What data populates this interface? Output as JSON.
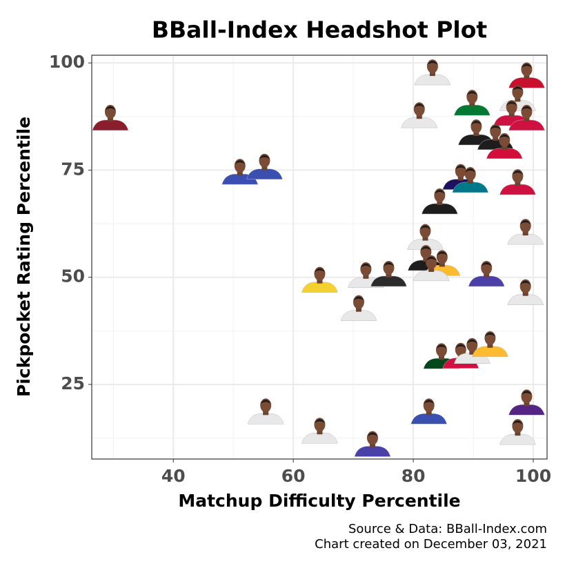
{
  "chart_data": {
    "type": "scatter",
    "title": "BBall-Index Headshot Plot",
    "x_label": "Matchup Difficulty Percentile",
    "y_label": "Pickpocket Rating Percentile",
    "caption": [
      "Source & Data: BBall-Index.com",
      "Chart created on December 03, 2021"
    ],
    "xlim": [
      26.4,
      102.3
    ],
    "ylim": [
      7.6,
      101.8
    ],
    "xticks": [
      40,
      60,
      80,
      100
    ],
    "yticks": [
      25,
      50,
      75,
      100
    ],
    "x_minor_grid": [
      30,
      50,
      70,
      90
    ],
    "y_minor_grid": [
      12.5,
      37.5,
      62.5,
      87.5
    ],
    "grid": true,
    "x": [
      29.5,
      51.1,
      55.2,
      83.2,
      98.9,
      89.8,
      81.0,
      97.4,
      96.4,
      98.9,
      90.5,
      93.7,
      95.2,
      87.9,
      89.5,
      97.4,
      84.4,
      98.7,
      82.0,
      82.1,
      84.8,
      83.0,
      64.4,
      72.1,
      75.9,
      92.2,
      98.7,
      70.9,
      84.7,
      87.9,
      89.8,
      92.8,
      55.4,
      82.6,
      98.9,
      64.4,
      73.2,
      97.4
    ],
    "y": [
      87.0,
      74.4,
      75.6,
      97.6,
      96.9,
      90.5,
      87.6,
      91.6,
      88.1,
      87.0,
      83.6,
      82.5,
      80.4,
      73.2,
      72.5,
      72.0,
      67.5,
      60.4,
      59.2,
      54.3,
      53.1,
      51.9,
      49.2,
      50.3,
      50.6,
      50.6,
      46.3,
      42.6,
      31.4,
      31.5,
      32.6,
      34.2,
      18.5,
      18.5,
      20.6,
      14.0,
      10.9,
      13.7
    ],
    "colors": [
      "#8b1e2d",
      "#3a4fb0",
      "#3a4fb0",
      "#e8e8e8",
      "#c8102e",
      "#007a33",
      "#e8e8e8",
      "#e8e8e8",
      "#ce1141",
      "#ce1141",
      "#1d1d1d",
      "#1d1d1d",
      "#d0103a",
      "#1d1160",
      "#00788c",
      "#ce1141",
      "#1d1d1d",
      "#e8e8e8",
      "#e8e8e8",
      "#1d1d1d",
      "#fdbb30",
      "#e8e8e8",
      "#f5d130",
      "#e8e8e8",
      "#2b2b2b",
      "#4b3fa8",
      "#e8e8e8",
      "#e8e8e8",
      "#00471b",
      "#ce1141",
      "#e8e8e8",
      "#fdbb30",
      "#e8e8e8",
      "#3a4fb0",
      "#552583",
      "#e8e8e8",
      "#4b3fa8",
      "#e8e8e8"
    ]
  }
}
